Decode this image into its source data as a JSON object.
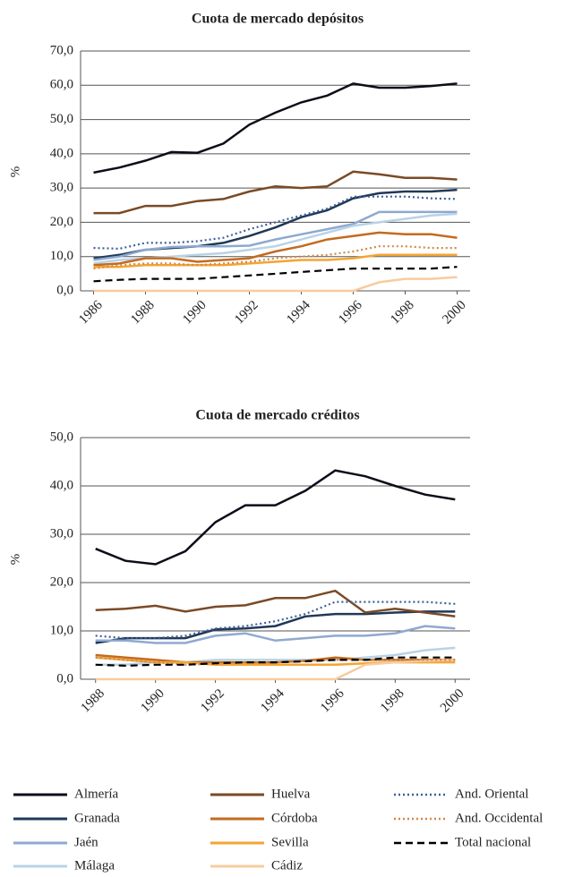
{
  "chart_data": [
    {
      "type": "line",
      "title": "Cuota de mercado depósitos",
      "y_label": "%",
      "x": [
        1986,
        1987,
        1988,
        1989,
        1990,
        1991,
        1992,
        1993,
        1994,
        1995,
        1996,
        1997,
        1998,
        1999,
        2000
      ],
      "xlim": [
        1986,
        2000
      ],
      "xticks": [
        1986,
        1988,
        1990,
        1992,
        1994,
        1996,
        1998,
        2000
      ],
      "ylim": [
        0,
        70
      ],
      "yticks": [
        {
          "value": 0,
          "label": "0,0"
        },
        {
          "value": 10,
          "label": "10,0"
        },
        {
          "value": 20,
          "label": "20,0"
        },
        {
          "value": 30,
          "label": "30,0"
        },
        {
          "value": 40,
          "label": "40,0"
        },
        {
          "value": 50,
          "label": "50,0"
        },
        {
          "value": 60,
          "label": "60,0"
        },
        {
          "value": 70,
          "label": "70,0"
        }
      ],
      "grid": true,
      "series": [
        {
          "name": "Almería",
          "color": "#0d0d1a",
          "style": "solid",
          "values": [
            34.5,
            36,
            38,
            40.5,
            40.3,
            43,
            48.5,
            52,
            55,
            57,
            60.5,
            59.3,
            59.3,
            59.8,
            60.5
          ]
        },
        {
          "name": "Granada",
          "color": "#1f3858",
          "style": "solid",
          "values": [
            9.5,
            10.5,
            12,
            12.5,
            13,
            14,
            16,
            18.5,
            21.5,
            23.5,
            27,
            28.5,
            29,
            29,
            29.5
          ]
        },
        {
          "name": "Jaén",
          "color": "#8ea9d0",
          "style": "solid",
          "values": [
            9,
            10,
            12,
            12.8,
            13,
            13,
            13.2,
            15,
            16.5,
            18,
            19.5,
            23,
            23,
            23,
            23
          ]
        },
        {
          "name": "Málaga",
          "color": "#b8d3e6",
          "style": "solid",
          "values": [
            8,
            9,
            9.5,
            10,
            10.5,
            11,
            12,
            13,
            15,
            17,
            19,
            20,
            21,
            22,
            22.5
          ]
        },
        {
          "name": "Huelva",
          "color": "#7a4a26",
          "style": "solid",
          "values": [
            22.7,
            22.7,
            24.8,
            24.8,
            26.2,
            26.8,
            29,
            30.5,
            30,
            30.5,
            34.8,
            34,
            33,
            33,
            32.5
          ]
        },
        {
          "name": "Córdoba",
          "color": "#c46a1e",
          "style": "solid",
          "values": [
            7.5,
            8,
            9.5,
            9.5,
            8.5,
            9,
            9.5,
            11.5,
            13,
            15,
            16,
            17,
            16.5,
            16.5,
            15.5
          ]
        },
        {
          "name": "Sevilla",
          "color": "#f5a433",
          "style": "solid",
          "values": [
            7,
            7,
            7.5,
            7.5,
            7.5,
            7.5,
            8,
            8.5,
            9,
            9,
            9.5,
            10.5,
            10.5,
            10.5,
            10.5
          ]
        },
        {
          "name": "Cádiz",
          "color": "#f8cba0",
          "style": "solid",
          "values": [
            0,
            0,
            0,
            0,
            0,
            0,
            0,
            0,
            0,
            0,
            0,
            2.5,
            3.5,
            3.5,
            4
          ]
        },
        {
          "name": "And. Oriental",
          "color": "#3f5f9a",
          "style": "dotted",
          "values": [
            12.5,
            12.3,
            14,
            14,
            14.5,
            15.5,
            18,
            20,
            22,
            24,
            27.5,
            27.5,
            27.5,
            27,
            26.8
          ]
        },
        {
          "name": "And. Occidental",
          "color": "#d08a4a",
          "style": "dotted",
          "values": [
            6.5,
            7.5,
            8,
            8,
            7.5,
            8,
            8.5,
            9.5,
            10,
            10.5,
            11.5,
            13,
            13,
            12.5,
            12.5
          ]
        },
        {
          "name": "Total nacional",
          "color": "#000000",
          "style": "dashed",
          "values": [
            2.8,
            3.2,
            3.5,
            3.5,
            3.5,
            4,
            4.5,
            5,
            5.5,
            6,
            6.5,
            6.5,
            6.5,
            6.5,
            7
          ]
        }
      ]
    },
    {
      "type": "line",
      "title": "Cuota de mercado créditos",
      "y_label": "%",
      "x": [
        1988,
        1989,
        1990,
        1991,
        1992,
        1993,
        1994,
        1995,
        1996,
        1997,
        1998,
        1999,
        2000
      ],
      "xlim": [
        1988,
        2000
      ],
      "xticks": [
        1988,
        1990,
        1992,
        1994,
        1996,
        1998,
        2000
      ],
      "ylim": [
        0,
        50
      ],
      "yticks": [
        {
          "value": 0,
          "label": "0,0"
        },
        {
          "value": 10,
          "label": "10,0"
        },
        {
          "value": 20,
          "label": "20,0"
        },
        {
          "value": 30,
          "label": "30,0"
        },
        {
          "value": 40,
          "label": "40,0"
        },
        {
          "value": 50,
          "label": "50,0"
        }
      ],
      "grid": true,
      "series": [
        {
          "name": "Almería",
          "color": "#0d0d1a",
          "style": "solid",
          "values": [
            27,
            24.5,
            23.8,
            26.5,
            32.5,
            36,
            36,
            39,
            43.2,
            42,
            40,
            38.2,
            37.2
          ]
        },
        {
          "name": "Granada",
          "color": "#1f3858",
          "style": "solid",
          "values": [
            7.5,
            8.5,
            8.5,
            8.5,
            10.3,
            10.5,
            11,
            13,
            13.5,
            13.5,
            13.8,
            14,
            14
          ]
        },
        {
          "name": "Jaén",
          "color": "#8ea9d0",
          "style": "solid",
          "values": [
            8,
            8,
            7.5,
            7.5,
            9,
            9.5,
            8,
            8.5,
            9,
            9,
            9.5,
            11,
            10.5
          ]
        },
        {
          "name": "Málaga",
          "color": "#b8d3e6",
          "style": "solid",
          "values": [
            3,
            3,
            3.5,
            3.5,
            4,
            4,
            4,
            4,
            4,
            4.5,
            5,
            6,
            6.5
          ]
        },
        {
          "name": "Huelva",
          "color": "#7a4a26",
          "style": "solid",
          "values": [
            14.3,
            14.6,
            15.2,
            14,
            15,
            15.3,
            16.8,
            16.8,
            18.3,
            13.8,
            14.6,
            13.8,
            13
          ]
        },
        {
          "name": "Córdoba",
          "color": "#c46a1e",
          "style": "solid",
          "values": [
            5,
            4.5,
            4,
            3.5,
            3.5,
            3.5,
            3.5,
            3.8,
            4.5,
            4,
            4,
            4,
            4
          ]
        },
        {
          "name": "Sevilla",
          "color": "#f5a433",
          "style": "solid",
          "values": [
            4.5,
            4,
            3.5,
            3.5,
            3,
            3,
            3,
            3,
            3,
            3.3,
            3.5,
            3.5,
            3.5
          ]
        },
        {
          "name": "Cádiz",
          "color": "#f8cba0",
          "style": "solid",
          "values": [
            0,
            0,
            0,
            0,
            0,
            0,
            0,
            0,
            0,
            3,
            3.5,
            3.8,
            4
          ]
        },
        {
          "name": "And. Oriental",
          "color": "#3f5f9a",
          "style": "dotted",
          "values": [
            9,
            8.5,
            8.5,
            9,
            10.5,
            11,
            12,
            13.5,
            16,
            16,
            16,
            16,
            15.6
          ]
        },
        {
          "name": "And. Occidental",
          "color": "#d08a4a",
          "style": "dotted",
          "values": [
            4.5,
            4,
            3.5,
            3,
            3.2,
            3.5,
            3.5,
            3.8,
            4,
            4,
            4,
            4,
            4
          ]
        },
        {
          "name": "Total nacional",
          "color": "#000000",
          "style": "dashed",
          "values": [
            3,
            2.8,
            3,
            3,
            3.3,
            3.5,
            3.5,
            3.7,
            4,
            4,
            4.5,
            4.5,
            4.5
          ]
        }
      ]
    }
  ]
}
